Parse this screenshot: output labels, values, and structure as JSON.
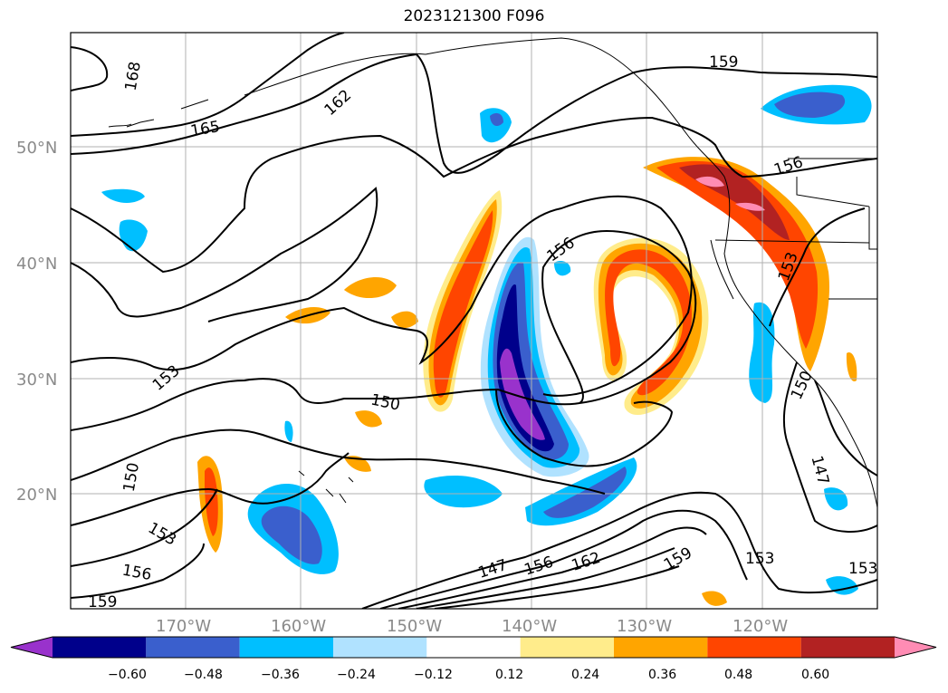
{
  "title": "2023121300 F096",
  "lat_labels": [
    "50°N",
    "40°N",
    "30°N",
    "20°N"
  ],
  "lon_labels": [
    "170°W",
    "160°W",
    "150°W",
    "140°W",
    "130°W",
    "120°W"
  ],
  "contour_labels": [
    "168",
    "165",
    "162",
    "159",
    "156",
    "153",
    "150",
    "147",
    "156",
    "153",
    "150",
    "153",
    "156",
    "159",
    "147",
    "156",
    "162",
    "159",
    "153",
    "153",
    "150",
    "147",
    "156",
    "153",
    "153"
  ],
  "colorbar": {
    "ticks": [
      "−0.60",
      "−0.48",
      "−0.36",
      "−0.24",
      "−0.12",
      "0.12",
      "0.24",
      "0.36",
      "0.48",
      "0.60"
    ],
    "colors": [
      "#9932cc",
      "#00008b",
      "#3a5fcd",
      "#00bfff",
      "#b0e2ff",
      "#ffffff",
      "#ffec8b",
      "#ffa500",
      "#ff4500",
      "#b22222",
      "#ff8cb4"
    ]
  }
}
